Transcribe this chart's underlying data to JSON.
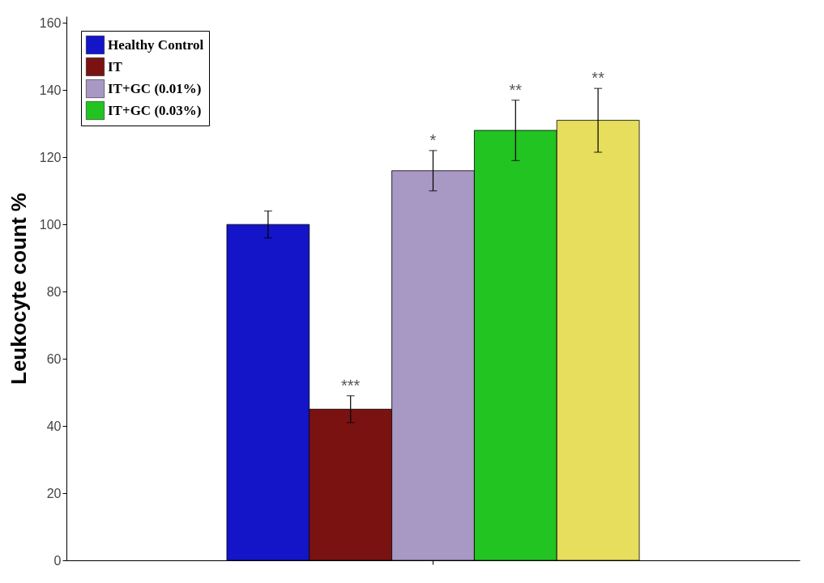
{
  "chart_data": {
    "type": "bar",
    "ylabel": "Leukocyte count %",
    "categories": [
      null
    ],
    "series": [
      {
        "name": "Healthy Control",
        "color": "#1414c8",
        "values": [
          100
        ],
        "errors": [
          4
        ],
        "value_labels": [
          null
        ]
      },
      {
        "name": "IT",
        "color": "#7a1212",
        "values": [
          45
        ],
        "errors": [
          4
        ],
        "value_labels": [
          "***"
        ]
      },
      {
        "name": "IT+GC (0.01%)",
        "color": "#a898c4",
        "values": [
          116
        ],
        "errors": [
          6
        ],
        "value_labels": [
          "*"
        ]
      },
      {
        "name": "IT+GC (0.03%)",
        "color": "#22c422",
        "values": [
          128
        ],
        "errors": [
          9
        ],
        "value_labels": [
          "**"
        ]
      },
      {
        "color": "#e6de5c",
        "values": [
          131
        ],
        "errors": [
          9.5
        ],
        "value_labels": [
          "**"
        ]
      }
    ],
    "ylim": [
      0,
      162
    ],
    "yticks": [
      0,
      20,
      40,
      60,
      80,
      100,
      120,
      140,
      160
    ],
    "tick_labels": "y",
    "legend": "top left",
    "grid": false
  }
}
